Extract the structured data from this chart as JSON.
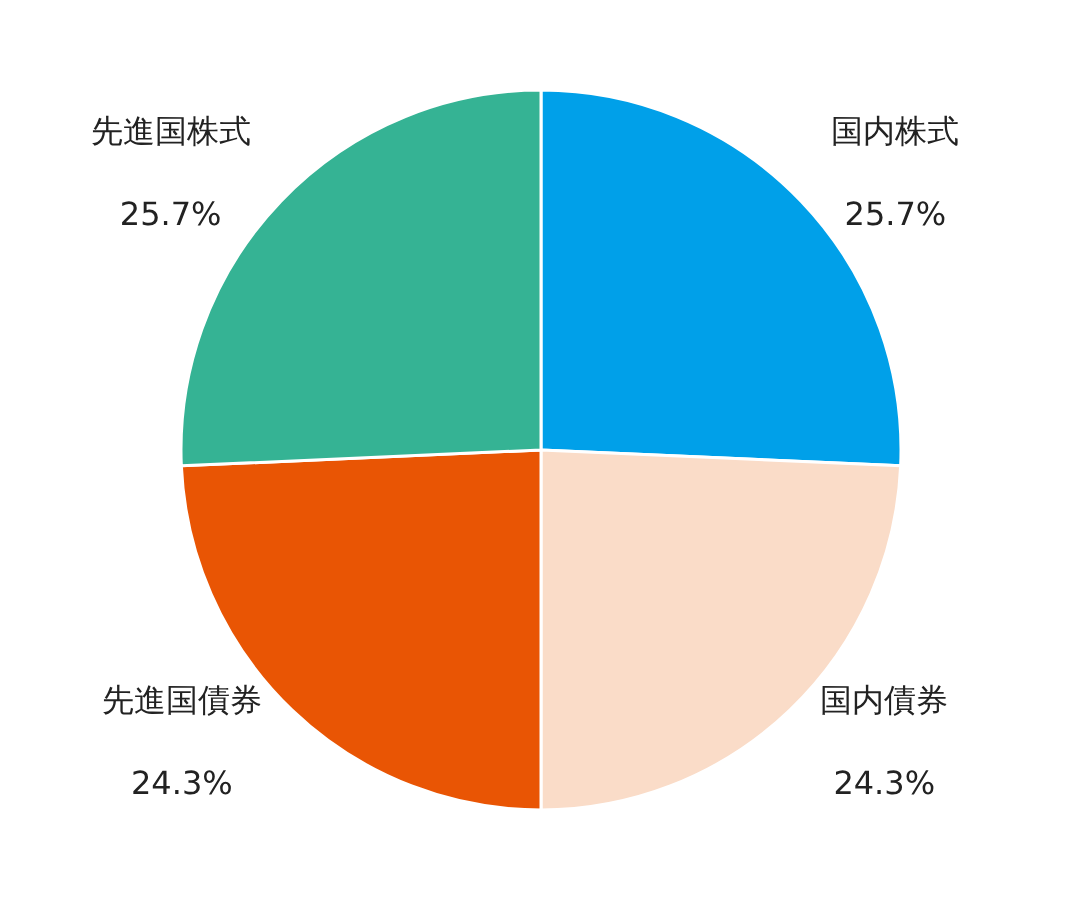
{
  "chart_data": {
    "type": "pie",
    "categories": [
      "国内株式",
      "国内債券",
      "先進国債券",
      "先進国株式"
    ],
    "values": [
      25.7,
      24.3,
      24.3,
      25.7
    ],
    "value_labels": [
      "25.7%",
      "24.3%",
      "24.3%",
      "25.7%"
    ],
    "colors": [
      "#00a0e9",
      "#fadcc8",
      "#e95504",
      "#35b394"
    ],
    "legend": false
  }
}
